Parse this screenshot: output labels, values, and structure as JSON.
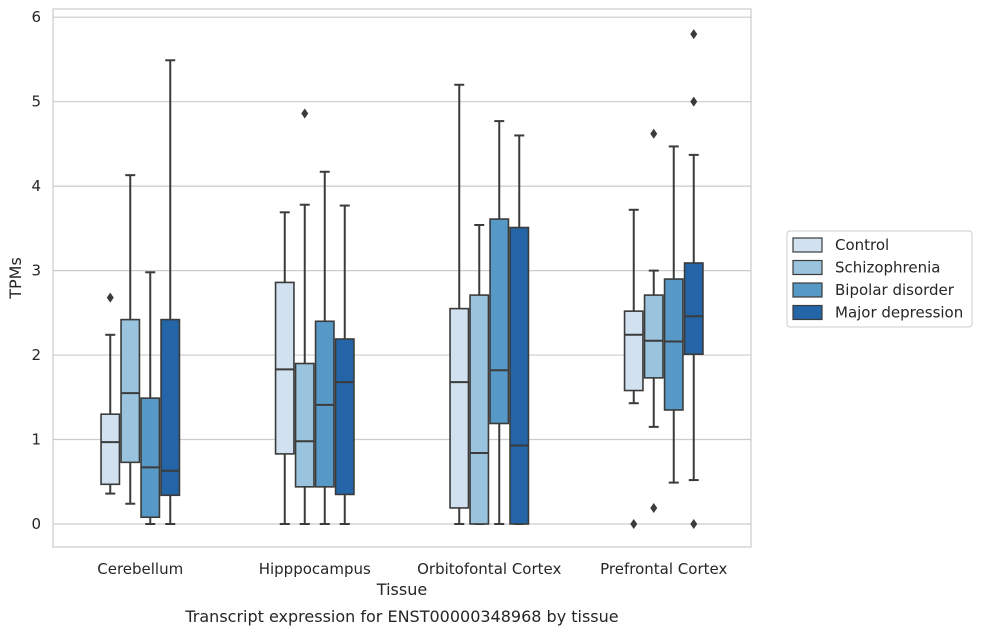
{
  "caption": "Transcript expression for ENST00000348968 by tissue",
  "chart_data": {
    "type": "box",
    "xlabel": "Tissue",
    "ylabel": "TPMs",
    "ylim": [
      -0.3,
      6.1
    ],
    "yticks": [
      0,
      1,
      2,
      3,
      4,
      5,
      6
    ],
    "grid": true,
    "legend_position": "right",
    "categories": [
      "Cerebellum",
      "Hipppocampus",
      "Orbitofontal Cortex",
      "Prefrontal Cortex"
    ],
    "series": [
      {
        "name": "Control",
        "color": "#d1e1ef",
        "boxes": [
          {
            "whisker_low": 0.36,
            "q1": 0.47,
            "median": 0.97,
            "q3": 1.3,
            "whisker_high": 2.24,
            "outliers": [
              2.68
            ]
          },
          {
            "whisker_low": 0.0,
            "q1": 0.83,
            "median": 1.83,
            "q3": 2.86,
            "whisker_high": 3.69,
            "outliers": []
          },
          {
            "whisker_low": 0.0,
            "q1": 0.19,
            "median": 1.68,
            "q3": 2.55,
            "whisker_high": 5.2,
            "outliers": []
          },
          {
            "whisker_low": 1.43,
            "q1": 1.58,
            "median": 2.24,
            "q3": 2.52,
            "whisker_high": 3.72,
            "outliers": [
              0.0
            ]
          }
        ]
      },
      {
        "name": "Schizophrenia",
        "color": "#9ac4dd",
        "boxes": [
          {
            "whisker_low": 0.24,
            "q1": 0.73,
            "median": 1.55,
            "q3": 2.42,
            "whisker_high": 4.13,
            "outliers": []
          },
          {
            "whisker_low": 0.0,
            "q1": 0.44,
            "median": 0.98,
            "q3": 1.9,
            "whisker_high": 3.78,
            "outliers": [
              4.86
            ]
          },
          {
            "whisker_low": 0.0,
            "q1": 0.0,
            "median": 0.84,
            "q3": 2.71,
            "whisker_high": 3.54,
            "outliers": []
          },
          {
            "whisker_low": 1.15,
            "q1": 1.73,
            "median": 2.17,
            "q3": 2.71,
            "whisker_high": 3.0,
            "outliers": [
              0.19,
              4.62
            ]
          }
        ]
      },
      {
        "name": "Bipolar disorder",
        "color": "#5799c6",
        "boxes": [
          {
            "whisker_low": 0.0,
            "q1": 0.08,
            "median": 0.67,
            "q3": 1.49,
            "whisker_high": 2.98,
            "outliers": []
          },
          {
            "whisker_low": 0.0,
            "q1": 0.44,
            "median": 1.41,
            "q3": 2.4,
            "whisker_high": 4.17,
            "outliers": []
          },
          {
            "whisker_low": 0.0,
            "q1": 1.19,
            "median": 1.82,
            "q3": 3.61,
            "whisker_high": 4.77,
            "outliers": []
          },
          {
            "whisker_low": 0.49,
            "q1": 1.35,
            "median": 2.16,
            "q3": 2.9,
            "whisker_high": 4.47,
            "outliers": []
          }
        ]
      },
      {
        "name": "Major depression",
        "color": "#2465a8",
        "boxes": [
          {
            "whisker_low": 0.0,
            "q1": 0.34,
            "median": 0.63,
            "q3": 2.42,
            "whisker_high": 5.49,
            "outliers": []
          },
          {
            "whisker_low": 0.0,
            "q1": 0.35,
            "median": 1.68,
            "q3": 2.19,
            "whisker_high": 3.77,
            "outliers": []
          },
          {
            "whisker_low": 0.0,
            "q1": 0.0,
            "median": 0.93,
            "q3": 3.51,
            "whisker_high": 4.6,
            "outliers": []
          },
          {
            "whisker_low": 0.52,
            "q1": 2.01,
            "median": 2.46,
            "q3": 3.09,
            "whisker_high": 4.37,
            "outliers": [
              0.0,
              5.0,
              5.8
            ]
          }
        ]
      }
    ]
  }
}
